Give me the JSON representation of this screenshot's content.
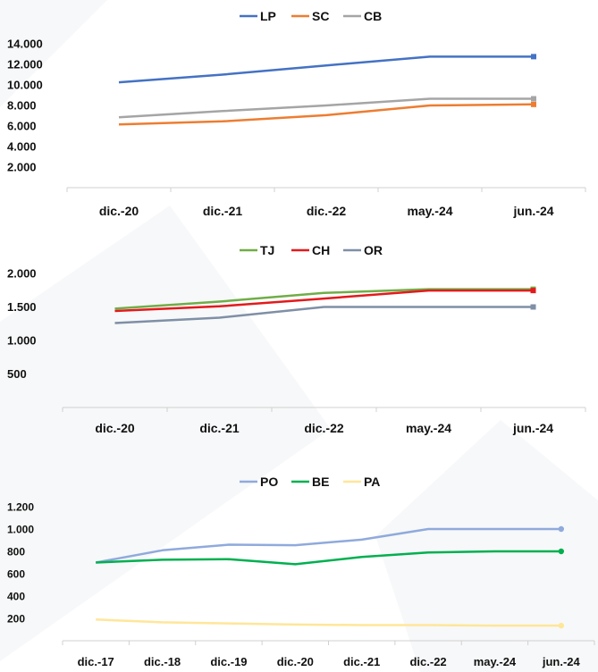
{
  "chart_data": [
    {
      "type": "line",
      "categories": [
        "dic.-20",
        "dic.-21",
        "dic.-22",
        "may.-24",
        "jun.-24"
      ],
      "yticks": [
        "14.000",
        "12.000",
        "10.000",
        "8.000",
        "6.000",
        "4.000",
        "2.000"
      ],
      "ytick_values": [
        14000,
        12000,
        10000,
        8000,
        6000,
        4000,
        2000
      ],
      "ylim": [
        0,
        14000
      ],
      "legend_position": "top",
      "series": [
        {
          "name": "LP",
          "color": "#4472C4",
          "values": [
            10250,
            11000,
            11900,
            12750,
            12750
          ]
        },
        {
          "name": "SC",
          "color": "#ED7D31",
          "values": [
            6150,
            6450,
            7050,
            8000,
            8100
          ]
        },
        {
          "name": "CB",
          "color": "#A5A5A5",
          "values": [
            6850,
            7450,
            8000,
            8650,
            8650
          ]
        }
      ]
    },
    {
      "type": "line",
      "categories": [
        "dic.-20",
        "dic.-21",
        "dic.-22",
        "may.-24",
        "jun.-24"
      ],
      "yticks": [
        "2.000",
        "1.500",
        "1.000",
        "500"
      ],
      "ytick_values": [
        2000,
        1500,
        1000,
        500
      ],
      "ylim": [
        0,
        2000
      ],
      "legend_position": "top",
      "series": [
        {
          "name": "TJ",
          "color": "#70AD47",
          "values": [
            1475,
            1580,
            1710,
            1765,
            1765
          ]
        },
        {
          "name": "CH",
          "color": "#E31A1C",
          "values": [
            1440,
            1510,
            1625,
            1745,
            1745
          ]
        },
        {
          "name": "OR",
          "color": "#7F8FA6",
          "values": [
            1260,
            1340,
            1500,
            1500,
            1500
          ]
        }
      ]
    },
    {
      "type": "line",
      "categories": [
        "dic.-17",
        "dic.-18",
        "dic.-19",
        "dic.-20",
        "dic.-21",
        "dic.-22",
        "may.-24",
        "jun.-24"
      ],
      "yticks": [
        "1.200",
        "1.000",
        "800",
        "600",
        "400",
        "200"
      ],
      "ytick_values": [
        1200,
        1000,
        800,
        600,
        400,
        200
      ],
      "ylim": [
        0,
        1200
      ],
      "legend_position": "top",
      "series": [
        {
          "name": "PO",
          "color": "#8FAADC",
          "values": [
            700,
            810,
            860,
            855,
            905,
            1000,
            1000,
            1000
          ]
        },
        {
          "name": "BE",
          "color": "#00B050",
          "values": [
            700,
            725,
            730,
            685,
            750,
            790,
            800,
            800
          ]
        },
        {
          "name": "PA",
          "color": "#FFE699",
          "values": [
            190,
            165,
            155,
            145,
            140,
            140,
            135,
            135
          ]
        }
      ]
    }
  ]
}
